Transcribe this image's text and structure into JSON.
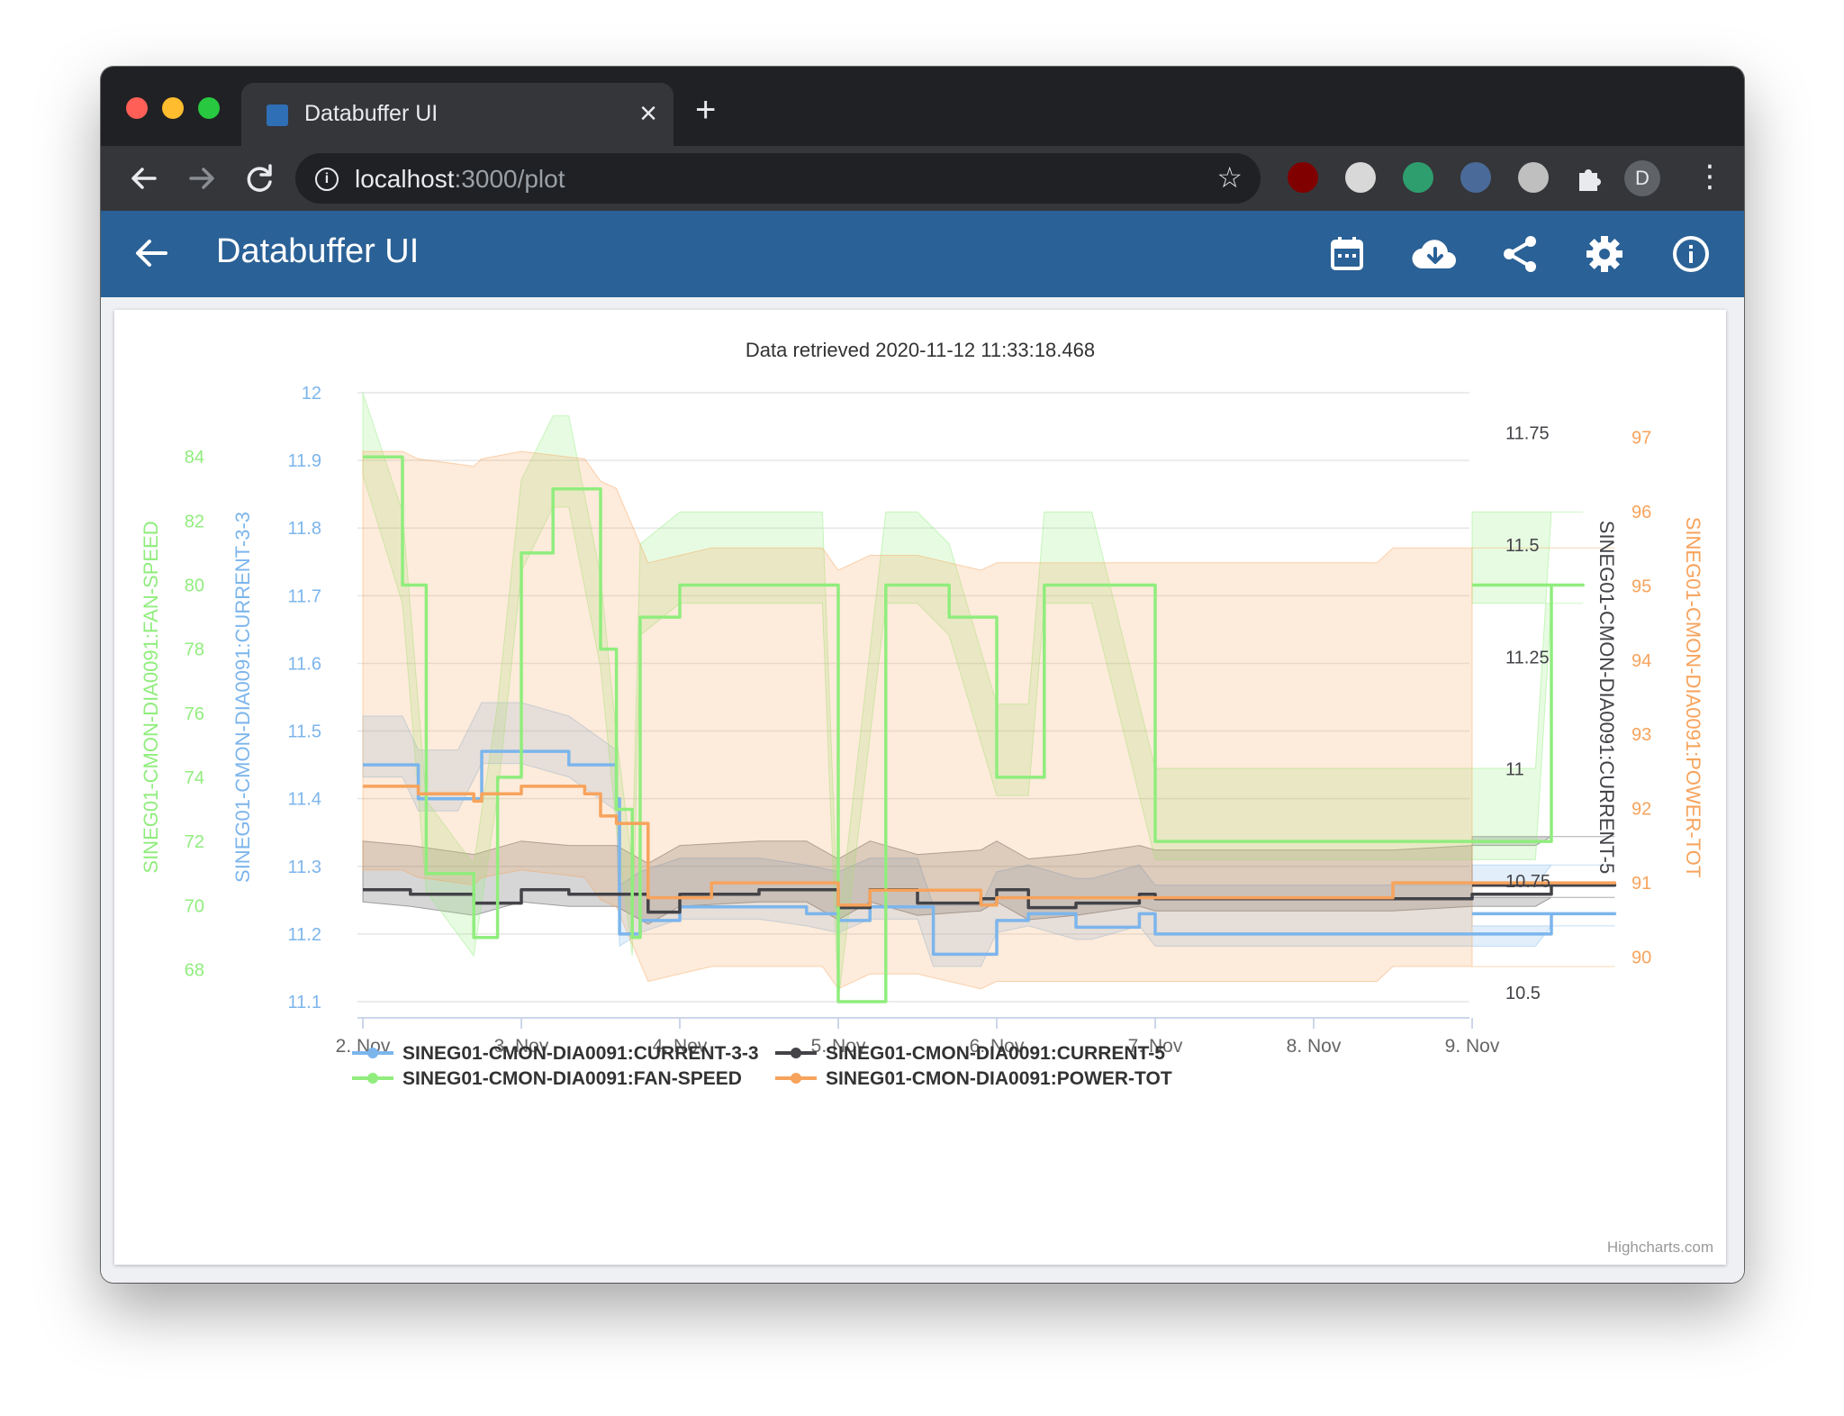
{
  "window": {
    "tab_title": "Databuffer UI",
    "tab_close": "×",
    "new_tab": "+",
    "url_host": "localhost",
    "url_path": ":3000/plot",
    "avatar_letter": "D"
  },
  "app": {
    "title": "Databuffer UI",
    "toolbar_icons": [
      "calendar-icon",
      "cloud-download-icon",
      "share-icon",
      "settings-icon",
      "info-icon"
    ]
  },
  "chart": {
    "subtitle": "Data retrieved 2020-11-12 11:33:18.468",
    "credits": "Highcharts.com"
  },
  "chart_data": {
    "type": "line",
    "x_tick_labels": [
      "2. Nov",
      "3. Nov",
      "4. Nov",
      "5. Nov",
      "6. Nov",
      "7. Nov",
      "8. Nov",
      "9. Nov"
    ],
    "grid": true,
    "legend_position": "bottom",
    "axes": [
      {
        "id": "fan",
        "side": "left-outer",
        "title": "SINEG01-CMON-DIA0091:FAN-SPEED",
        "color": "#90ed7d",
        "range": [
          67,
          86
        ],
        "ticks": [
          68,
          70,
          72,
          74,
          76,
          78,
          80,
          82,
          84
        ]
      },
      {
        "id": "cur33",
        "side": "left-inner",
        "title": "SINEG01-CMON-DIA0091:CURRENT-3-3",
        "color": "#7cb5ec",
        "range": [
          11.1,
          12
        ],
        "ticks": [
          11.1,
          11.2,
          11.3,
          11.4,
          11.5,
          11.6,
          11.7,
          11.8,
          11.9,
          12
        ]
      },
      {
        "id": "cur5",
        "side": "right-inner",
        "title": "SINEG01-CMON-DIA0091:CURRENT-5",
        "color": "#434348",
        "range": [
          10.48,
          11.84
        ],
        "ticks": [
          10.5,
          10.75,
          11,
          11.25,
          11.5,
          11.75
        ]
      },
      {
        "id": "pwr",
        "side": "right-outer",
        "title": "SINEG01-CMON-DIA0091:POWER-TOT",
        "color": "#f7a35c",
        "range": [
          89.4,
          97.6
        ],
        "ticks": [
          90,
          91,
          92,
          93,
          94,
          95,
          96,
          97
        ]
      }
    ],
    "series": [
      {
        "name": "SINEG01-CMON-DIA0091:CURRENT-3-3",
        "axis": "cur33",
        "color": "#7cb5ec",
        "x_days": [
          0,
          0.25,
          0.35,
          0.6,
          0.75,
          1.0,
          1.3,
          1.6,
          1.62,
          1.75,
          2.0,
          2.5,
          2.8,
          3.0,
          3.2,
          3.5,
          3.6,
          3.9,
          4.0,
          4.2,
          4.5,
          4.6,
          4.9,
          5.0,
          5.5,
          5.9,
          6.0,
          6.5,
          7.0,
          7.4,
          7.5,
          7.9
        ],
        "values": [
          11.45,
          11.45,
          11.4,
          11.4,
          11.47,
          11.47,
          11.45,
          11.4,
          11.2,
          11.22,
          11.24,
          11.24,
          11.23,
          11.22,
          11.24,
          11.24,
          11.17,
          11.17,
          11.22,
          11.23,
          11.21,
          11.21,
          11.23,
          11.2,
          11.2,
          11.2,
          11.2,
          11.2,
          11.2,
          11.2,
          11.23,
          11.23
        ]
      },
      {
        "name": "SINEG01-CMON-DIA0091:CURRENT-5",
        "axis": "cur5",
        "color": "#434348",
        "x_days": [
          0,
          0.3,
          0.7,
          1.0,
          1.3,
          1.6,
          1.8,
          2.0,
          2.5,
          2.8,
          3.0,
          3.2,
          3.5,
          3.9,
          4.0,
          4.2,
          4.5,
          4.9,
          5.0,
          5.5,
          6.0,
          6.5,
          7.0,
          7.4,
          7.5,
          7.9
        ],
        "values": [
          10.73,
          10.72,
          10.7,
          10.73,
          10.72,
          10.72,
          10.68,
          10.72,
          10.73,
          10.73,
          10.69,
          10.73,
          10.7,
          10.71,
          10.73,
          10.69,
          10.7,
          10.72,
          10.71,
          10.71,
          10.71,
          10.71,
          10.72,
          10.72,
          10.74,
          10.74
        ]
      },
      {
        "name": "SINEG01-CMON-DIA0091:FAN-SPEED",
        "axis": "fan",
        "color": "#90ed7d",
        "x_days": [
          0,
          0.25,
          0.4,
          0.7,
          0.85,
          1.0,
          1.2,
          1.3,
          1.5,
          1.6,
          1.7,
          1.75,
          2.0,
          2.2,
          2.5,
          2.9,
          3.0,
          3.3,
          3.5,
          3.7,
          4.0,
          4.2,
          4.3,
          4.5,
          4.6,
          5.0,
          5.5,
          6.0,
          6.5,
          6.9,
          7.1,
          7.4,
          7.5,
          7.7
        ],
        "values": [
          84,
          80,
          71,
          69,
          74,
          81,
          83,
          83,
          78,
          73,
          69,
          79,
          80,
          80,
          80,
          80,
          67,
          80,
          80,
          79,
          74,
          74,
          80,
          80,
          80,
          72,
          72,
          72,
          72,
          72,
          72,
          72,
          80,
          80
        ]
      },
      {
        "name": "SINEG01-CMON-DIA0091:POWER-TOT",
        "axis": "pwr",
        "color": "#f7a35c",
        "x_days": [
          0,
          0.25,
          0.35,
          0.7,
          0.75,
          1.0,
          1.4,
          1.5,
          1.6,
          1.8,
          2.2,
          2.6,
          2.9,
          3.0,
          3.2,
          3.5,
          3.9,
          4.0,
          4.2,
          4.5,
          5.0,
          5.5,
          6.0,
          6.4,
          6.5,
          7.0,
          7.5,
          7.9
        ],
        "values": [
          92.3,
          92.3,
          92.2,
          92.1,
          92.2,
          92.3,
          92.2,
          91.9,
          91.8,
          90.8,
          91.0,
          91.0,
          91.0,
          90.7,
          90.9,
          90.9,
          90.7,
          90.8,
          90.8,
          90.8,
          90.8,
          90.8,
          90.8,
          90.8,
          91.0,
          91.0,
          91.0,
          91.0
        ]
      }
    ]
  }
}
